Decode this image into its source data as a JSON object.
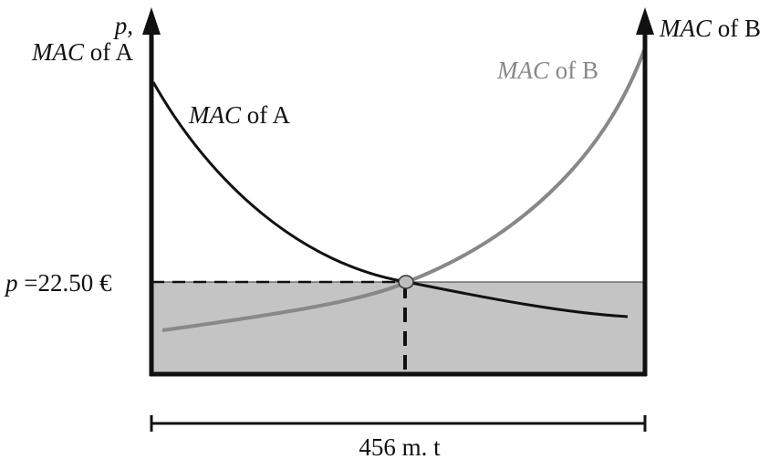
{
  "left_axis": {
    "label_line1": "p,",
    "label_line2_italic": "MAC",
    "label_line2_rest": " of A"
  },
  "right_axis": {
    "label_italic": "MAC",
    "label_rest": " of B"
  },
  "curve_a": {
    "label_italic": "MAC",
    "label_rest": " of A",
    "color": "#111111"
  },
  "curve_b": {
    "label_italic": "MAC",
    "label_rest": " of B",
    "color": "#888888"
  },
  "price": {
    "label_italic": "p",
    "label_rest": " =22.50 €"
  },
  "span": {
    "label": "456 m. t"
  },
  "colors": {
    "shaded_area": "#c4c4c4",
    "axes": "#111111",
    "intersection_point": "#bdbdbd"
  }
}
